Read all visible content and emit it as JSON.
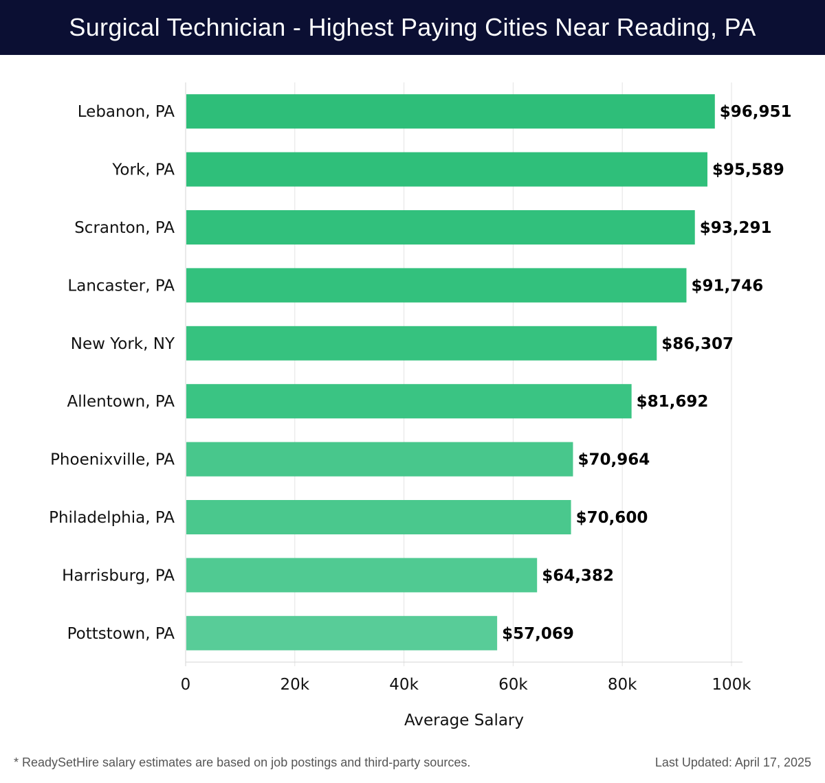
{
  "header": {
    "title": "Surgical Technician - Highest Paying Cities Near Reading, PA"
  },
  "chart_data": {
    "type": "bar",
    "orientation": "horizontal",
    "title": "Surgical Technician - Highest Paying Cities Near Reading, PA",
    "xlabel": "Average Salary",
    "ylabel": "",
    "xlim": [
      0,
      100000
    ],
    "x_ticks": [
      0,
      20000,
      40000,
      60000,
      80000,
      100000
    ],
    "x_tick_labels": [
      "0",
      "20k",
      "40k",
      "60k",
      "80k",
      "100k"
    ],
    "grid": "vertical",
    "categories": [
      "Lebanon, PA",
      "York, PA",
      "Scranton, PA",
      "Lancaster, PA",
      "New York, NY",
      "Allentown, PA",
      "Phoenixville, PA",
      "Philadelphia, PA",
      "Harrisburg, PA",
      "Pottstown, PA"
    ],
    "values": [
      96951,
      95589,
      93291,
      91746,
      86307,
      81692,
      70964,
      70600,
      64382,
      57069
    ],
    "value_labels": [
      "$96,951",
      "$95,589",
      "$93,291",
      "$91,746",
      "$86,307",
      "$81,692",
      "$70,964",
      "$70,600",
      "$64,382",
      "$57,069"
    ],
    "bar_colors": [
      "#2ebe79",
      "#2fbf7a",
      "#31c07c",
      "#33c17d",
      "#36c27f",
      "#3ac483",
      "#48c78c",
      "#4ac88d",
      "#50ca92",
      "#58cc98"
    ]
  },
  "footer": {
    "note": "* ReadySetHire salary estimates are based on job postings and third-party sources.",
    "updated": "Last Updated: April 17, 2025"
  }
}
